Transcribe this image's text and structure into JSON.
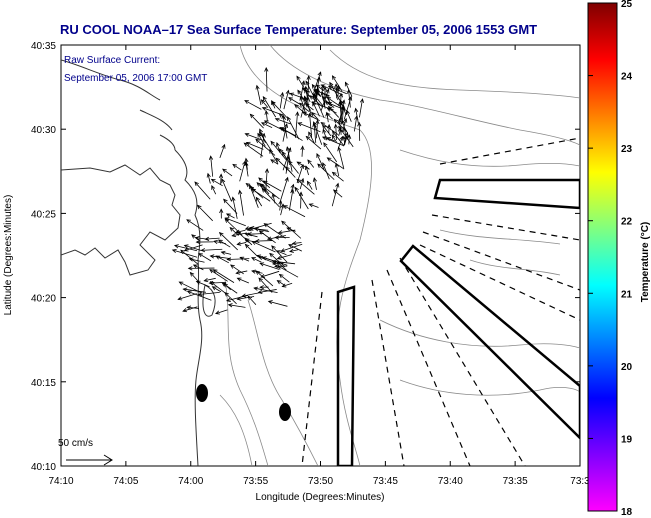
{
  "title": "RU COOL  NOAA–17  Sea Surface Temperature:  September 05, 2006 1553 GMT",
  "annotation": {
    "line1": "Raw Surface Current:",
    "line2": "September 05, 2006 17:00 GMT"
  },
  "scale_label": "50 cm/s",
  "x_axis": {
    "label": "Longitude (Degrees:Minutes)",
    "ticks": [
      "74:10",
      "74:05",
      "74:00",
      "73:55",
      "73:50",
      "73:45",
      "73:40",
      "73:35",
      "73:3"
    ]
  },
  "y_axis": {
    "label": "Latitude (Degrees:Minutes)",
    "ticks": [
      "40:35",
      "40:30",
      "40:25",
      "40:20",
      "40:15",
      "40:10"
    ]
  },
  "colorbar": {
    "label": "Temperature (°C)",
    "ticks": [
      "25",
      "24",
      "23",
      "22",
      "21",
      "20",
      "19",
      "18"
    ],
    "colors": [
      "#7f0000",
      "#ff0000",
      "#ff8000",
      "#ffff00",
      "#80ff80",
      "#00ffff",
      "#0080ff",
      "#0000ff",
      "#8000ff",
      "#ff00ff"
    ]
  }
}
